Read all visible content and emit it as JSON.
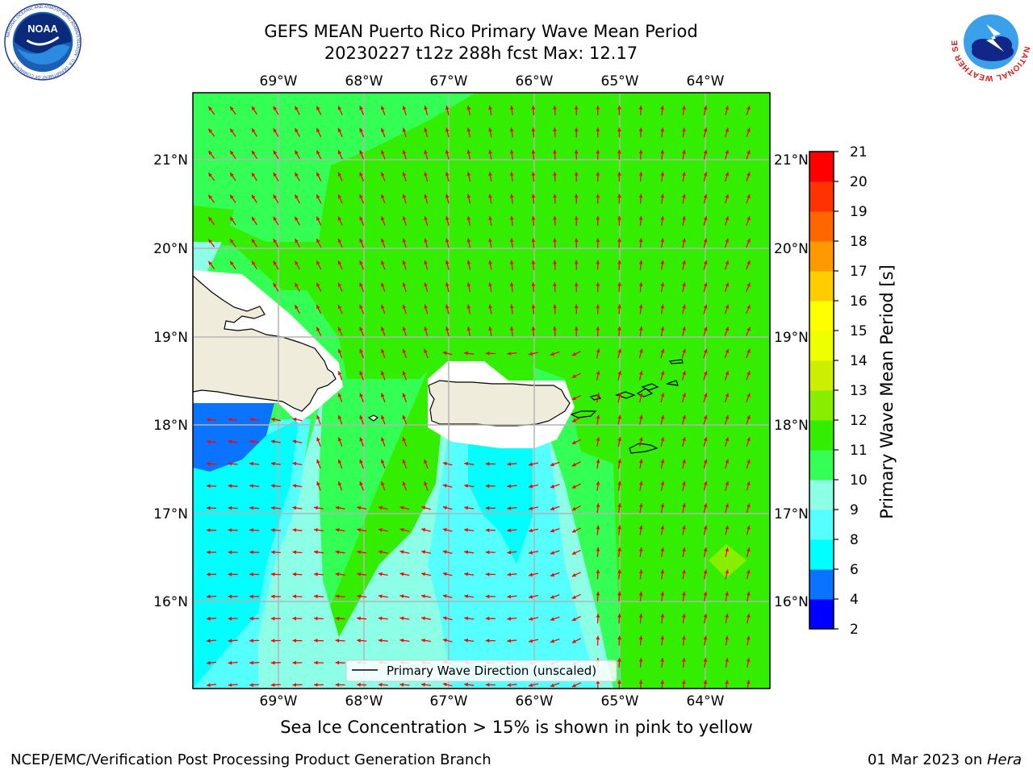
{
  "header": {
    "title_line1": "GEFS MEAN Puerto Rico Primary Wave Mean Period",
    "title_line2": "20230227 t12z 288h fcst   Max: 12.17"
  },
  "logos": {
    "left": "noaa-logo",
    "right": "national-weather-service-logo",
    "left_text": "NOAA",
    "left_ring_text": "NATIONAL OCEANIC AND ATMOSPHERIC ADMINISTRATION · U.S. DEPARTMENT OF COMMERCE",
    "right_ring_text": "NATIONAL WEATHER SERVICE"
  },
  "map": {
    "lon_ticks": [
      "69°W",
      "68°W",
      "67°W",
      "66°W",
      "65°W",
      "64°W"
    ],
    "lat_ticks": [
      "21°N",
      "20°N",
      "19°N",
      "18°N",
      "17°N",
      "16°N"
    ],
    "legend_label": "Primary Wave Direction (unscaled)",
    "arrow_color": "#ff0000",
    "land_color": "#efecdc"
  },
  "colorbar": {
    "label": "Primary Wave Mean Period [s]",
    "ticks": [
      "2",
      "4",
      "6",
      "8",
      "9",
      "10",
      "11",
      "12",
      "13",
      "14",
      "15",
      "16",
      "17",
      "18",
      "19",
      "20",
      "21"
    ],
    "colors": [
      "#0000ff",
      "#0a73ff",
      "#00ffff",
      "#55ffff",
      "#8cffe6",
      "#33ff55",
      "#33ee00",
      "#88ee00",
      "#ccee00",
      "#eeff00",
      "#ffff00",
      "#ffcc00",
      "#ff9900",
      "#ff6600",
      "#ff3300",
      "#ff0000"
    ]
  },
  "caption": "Sea Ice Concentration > 15% is shown in pink to yellow",
  "footer": {
    "left": "NCEP/EMC/Verification Post Processing Product Generation Branch",
    "right_prefix": "01 Mar 2023 on ",
    "right_host": "Hera"
  }
}
